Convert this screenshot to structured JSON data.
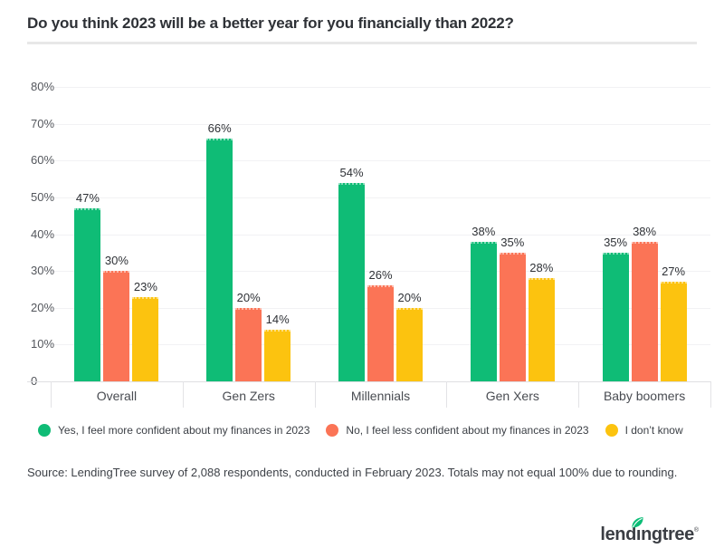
{
  "title": "Do you think 2023 will be a better year for you financially than 2022?",
  "chart_data": {
    "type": "bar",
    "categories": [
      "Overall",
      "Gen Zers",
      "Millennials",
      "Gen Xers",
      "Baby boomers"
    ],
    "series": [
      {
        "name": "Yes, I feel more confident about my finances in 2023",
        "color": "#0fbc76",
        "values": [
          47,
          66,
          54,
          38,
          35
        ]
      },
      {
        "name": "No, I feel less confident about my finances in 2023",
        "color": "#fb7456",
        "values": [
          30,
          20,
          26,
          35,
          38
        ]
      },
      {
        "name": "I don’t know",
        "color": "#fcc30f",
        "values": [
          23,
          14,
          20,
          28,
          27
        ]
      }
    ],
    "ylim": [
      0,
      80
    ],
    "ytick_labels": [
      "80%",
      "70%",
      "60%",
      "50%",
      "40%",
      "30%",
      "20%",
      "10%",
      "0"
    ],
    "grid": true,
    "legend_position": "bottom",
    "value_suffix": "%"
  },
  "source_note": "Source: LendingTree survey of 2,088 respondents, conducted in February 2023. Totals may not equal 100% due to rounding.",
  "logo": {
    "wordmark": "lendıngtree",
    "reg": "®",
    "text_color": "#3b3e44",
    "leaf_color": "#0cbd77"
  }
}
